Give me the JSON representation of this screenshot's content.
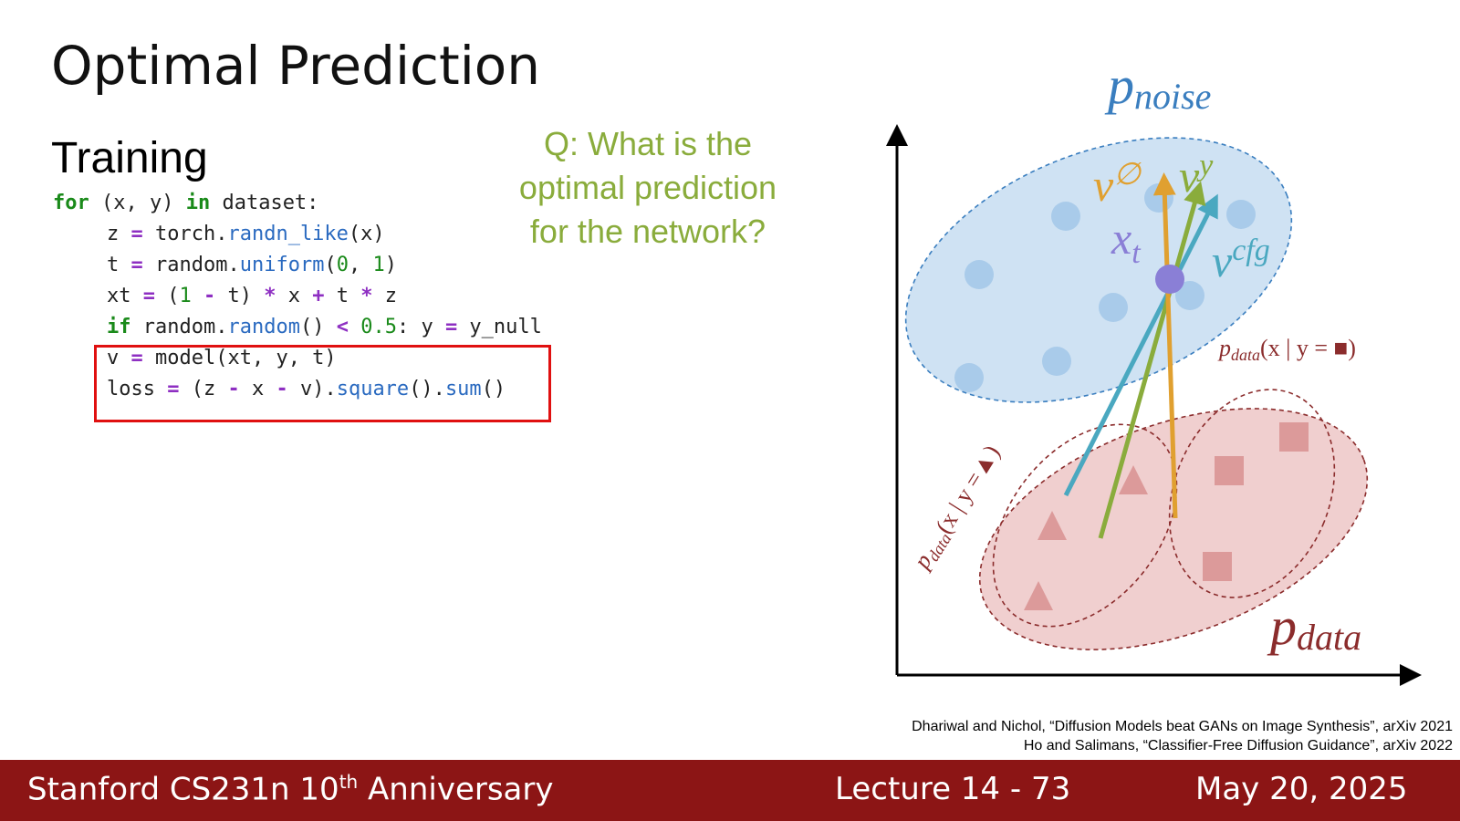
{
  "header": {
    "title": "Optimal Prediction",
    "subtitle": "Training"
  },
  "code": {
    "lines": [
      [
        "for",
        " (x, y) ",
        "in",
        " dataset:"
      ],
      [
        "z ",
        "=",
        " torch.",
        "randn_like",
        "(x)"
      ],
      [
        "t ",
        "=",
        " random.",
        "uniform",
        "(",
        "0",
        ", ",
        "1",
        ")"
      ],
      [
        "xt ",
        "=",
        " (",
        "1",
        " ",
        "-",
        " t) ",
        "*",
        " x ",
        "+",
        " t ",
        "*",
        " z"
      ],
      [
        "if",
        " random.",
        "random",
        "() ",
        "<",
        " ",
        "0.5",
        ": y ",
        "=",
        " y_null"
      ],
      [
        "v ",
        "=",
        " model(xt, y, t)"
      ],
      [
        "loss ",
        "=",
        " (z ",
        "-",
        " x ",
        "-",
        " v).",
        "square",
        "().",
        "sum",
        "()"
      ]
    ]
  },
  "question": [
    "Q: What is the",
    "optimal prediction",
    "for the network?"
  ],
  "diagram": {
    "p_noise": {
      "base": "p",
      "sub": "noise"
    },
    "v_null": {
      "base": "v",
      "sup": "∅"
    },
    "v_y": {
      "base": "v",
      "sup": "y"
    },
    "x_t": {
      "base": "x",
      "sub": "t"
    },
    "v_cfg": {
      "base": "v",
      "sup": "cfg"
    },
    "p_data_square": {
      "base": "p",
      "sub": "data",
      "rest": "(x | y = ■)"
    },
    "p_data_triangle": {
      "base": "p",
      "sub": "data",
      "rest": "(x | y =▲)"
    },
    "p_data": {
      "base": "p",
      "sub": "data"
    }
  },
  "citations": [
    "Dhariwal and Nichol, “Diffusion Models beat GANs on Image Synthesis”, arXiv 2021",
    "Ho and Salimans, “Classifier-Free Diffusion Guidance”, arXiv 2022"
  ],
  "footer": {
    "course": "Stanford CS231n 10",
    "course_sup": "th",
    "course_rest": " Anniversary",
    "lecture": "Lecture 14 -",
    "page": "73",
    "date": "May 20, 2025"
  }
}
